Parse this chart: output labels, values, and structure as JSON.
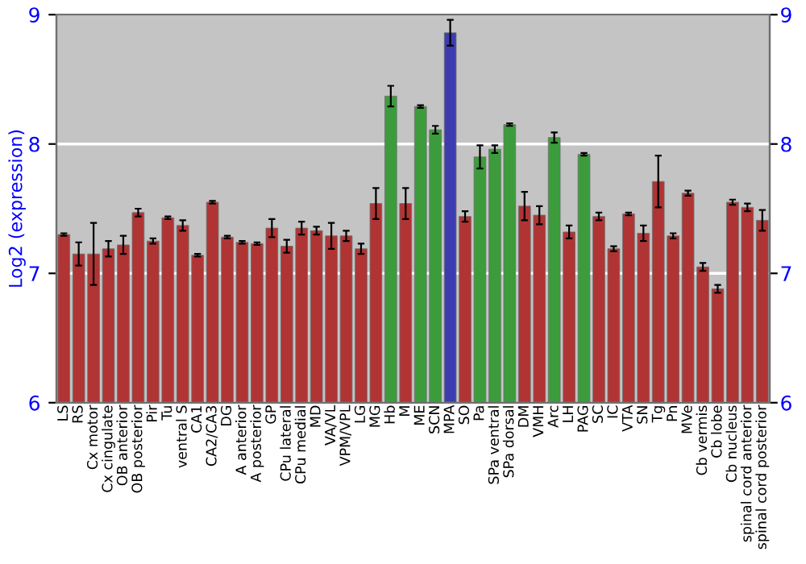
{
  "chart_data": {
    "type": "bar",
    "ylabel": "Log2 (expression)",
    "categories": [
      "LS",
      "RS",
      "Cx motor",
      "Cx cingulate",
      "OB anterior",
      "OB posterior",
      "Pir",
      "Tu",
      "ventral S",
      "CA1",
      "CA2/CA3",
      "DG",
      "A anterior",
      "A posterior",
      "GP",
      "CPu lateral",
      "CPu medial",
      "MD",
      "VA/VL",
      "VPM/VPL",
      "LG",
      "MG",
      "Hb",
      "M",
      "ME",
      "SCN",
      "MPA",
      "SO",
      "Pa",
      "SPa ventral",
      "SPa dorsal",
      "DM",
      "VMH",
      "Arc",
      "LH",
      "PAG",
      "SC",
      "IC",
      "VTA",
      "SN",
      "Tg",
      "Pn",
      "MVe",
      "Cb vermis",
      "Cb lobe",
      "Cb nucleus",
      "spinal cord anterior",
      "spinal cord posterior"
    ],
    "values": [
      7.3,
      7.15,
      7.15,
      7.19,
      7.22,
      7.47,
      7.25,
      7.43,
      7.37,
      7.14,
      7.55,
      7.28,
      7.24,
      7.23,
      7.35,
      7.21,
      7.35,
      7.33,
      7.29,
      7.29,
      7.19,
      7.54,
      8.37,
      7.54,
      8.29,
      8.11,
      8.86,
      7.44,
      7.9,
      7.96,
      8.15,
      7.52,
      7.45,
      8.05,
      7.32,
      7.92,
      7.44,
      7.19,
      7.46,
      7.31,
      7.71,
      7.29,
      7.62,
      7.05,
      6.88,
      7.55,
      7.51,
      7.41
    ],
    "errors": [
      0.01,
      0.09,
      0.24,
      0.06,
      0.07,
      0.03,
      0.02,
      0.01,
      0.04,
      0.01,
      0.01,
      0.01,
      0.01,
      0.01,
      0.07,
      0.05,
      0.05,
      0.03,
      0.1,
      0.04,
      0.04,
      0.12,
      0.08,
      0.12,
      0.01,
      0.03,
      0.1,
      0.04,
      0.09,
      0.03,
      0.01,
      0.11,
      0.07,
      0.04,
      0.05,
      0.01,
      0.03,
      0.02,
      0.01,
      0.06,
      0.2,
      0.02,
      0.02,
      0.03,
      0.03,
      0.02,
      0.03,
      0.08
    ],
    "colors": [
      "#b03434",
      "#b03434",
      "#b03434",
      "#b03434",
      "#b03434",
      "#b03434",
      "#b03434",
      "#b03434",
      "#b03434",
      "#b03434",
      "#b03434",
      "#b03434",
      "#b03434",
      "#b03434",
      "#b03434",
      "#b03434",
      "#b03434",
      "#b03434",
      "#b03434",
      "#b03434",
      "#b03434",
      "#b03434",
      "#3c9c3c",
      "#b03434",
      "#3c9c3c",
      "#3c9c3c",
      "#3c3cb0",
      "#b03434",
      "#3c9c3c",
      "#3c9c3c",
      "#3c9c3c",
      "#b03434",
      "#b03434",
      "#3c9c3c",
      "#b03434",
      "#3c9c3c",
      "#b03434",
      "#b03434",
      "#b03434",
      "#b03434",
      "#b03434",
      "#b03434",
      "#b03434",
      "#b03434",
      "#b03434",
      "#b03434",
      "#b03434",
      "#b03434"
    ],
    "ylim": [
      6,
      9
    ],
    "yticks": [
      6,
      7,
      8,
      9
    ],
    "y2lim": [
      6,
      9
    ],
    "y2ticks": [
      6,
      7,
      8,
      9
    ],
    "grid": "y"
  }
}
